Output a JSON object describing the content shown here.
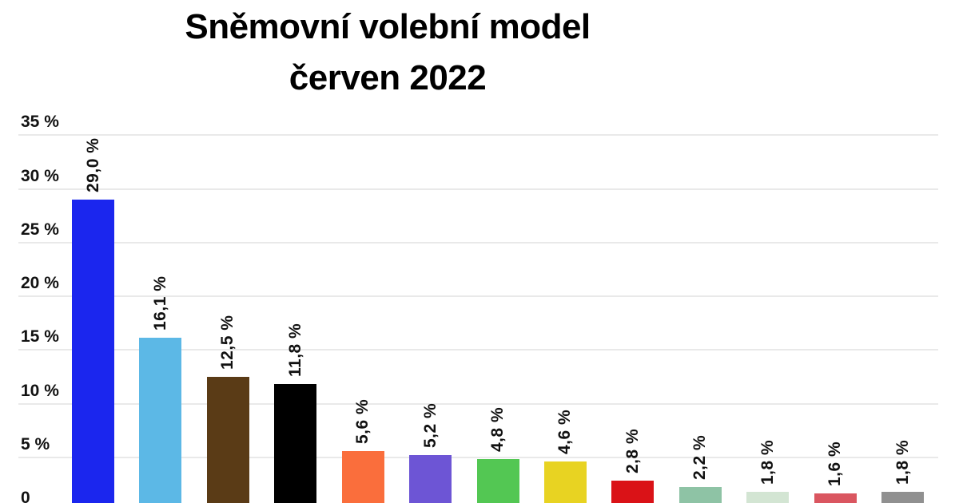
{
  "title": {
    "line1": "Sněmovní volební model",
    "line2": "červen 2022"
  },
  "chart_data": {
    "type": "bar",
    "title": "Sněmovní volební model",
    "subtitle": "červen 2022",
    "xlabel": "",
    "ylabel": "%",
    "ylim": [
      0,
      35
    ],
    "grid": true,
    "legend": "none",
    "x_tick_labels_visible": false,
    "y_tick_labels": [
      "35 %",
      "30 %",
      "25 %",
      "20 %",
      "15 %",
      "10 %",
      "5 %",
      "0"
    ],
    "y_tick_values": [
      35,
      30,
      25,
      20,
      15,
      10,
      5,
      0
    ],
    "bars": [
      {
        "value": 29.0,
        "data_label": "29,0 %",
        "color": "#1b26ee"
      },
      {
        "value": 16.1,
        "data_label": "16,1 %",
        "color": "#5cb8e6"
      },
      {
        "value": 12.5,
        "data_label": "12,5 %",
        "color": "#5a3b16"
      },
      {
        "value": 11.8,
        "data_label": "11,8 %",
        "color": "#000000"
      },
      {
        "value": 5.6,
        "data_label": "5,6 %",
        "color": "#fa6e3c"
      },
      {
        "value": 5.2,
        "data_label": "5,2 %",
        "color": "#6d55d5"
      },
      {
        "value": 4.8,
        "data_label": "4,8 %",
        "color": "#53c753"
      },
      {
        "value": 4.6,
        "data_label": "4,6 %",
        "color": "#e8d322"
      },
      {
        "value": 2.8,
        "data_label": "2,8 %",
        "color": "#da1217"
      },
      {
        "value": 2.2,
        "data_label": "2,2 %",
        "color": "#8ec3a5"
      },
      {
        "value": 1.8,
        "data_label": "1,8 %",
        "color": "#d3e5d3"
      },
      {
        "value": 1.6,
        "data_label": "1,6 %",
        "color": "#da5660"
      },
      {
        "value": 1.8,
        "data_label": "1,8 %",
        "color": "#909090"
      }
    ],
    "colors_note": {
      "grid_color": "#e9e9e9",
      "text_color": "#111111",
      "background": "#ffffff"
    }
  }
}
